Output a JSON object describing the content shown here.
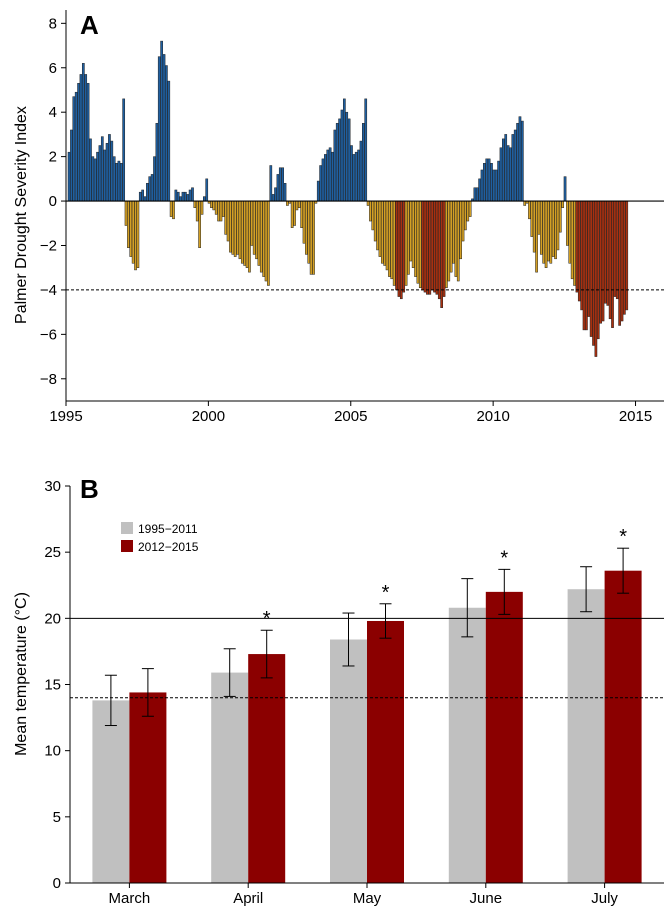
{
  "chart_data": [
    {
      "panel_label": "A",
      "type": "bar",
      "ylabel": "Palmer Drought Severity Index",
      "xlabel": "",
      "ylim": [
        -9,
        8.6
      ],
      "xlim": [
        1995,
        2016
      ],
      "yticks": [
        -8,
        -6,
        -4,
        -2,
        0,
        2,
        4,
        6,
        8
      ],
      "ytick_labels": [
        "−8",
        "−6",
        "−4",
        "−2",
        "0",
        "2",
        "4",
        "6",
        "8"
      ],
      "xticks": [
        1995,
        2000,
        2005,
        2010,
        2015
      ],
      "xtick_labels": [
        "1995",
        "2000",
        "2005",
        "2010",
        "2015"
      ],
      "reference_line": -4,
      "grid": false,
      "colors": {
        "positive": "#1f5fa0",
        "negative_mild": "#d4a024",
        "negative_severe": "#a83010",
        "edge": "#222222"
      },
      "x_start_year": 1995,
      "interval": "monthly",
      "values": [
        2.2,
        3.2,
        4.7,
        4.9,
        5.3,
        5.7,
        6.2,
        5.7,
        5.3,
        2.8,
        2.0,
        1.9,
        2.2,
        2.5,
        2.9,
        2.3,
        2.6,
        3.0,
        2.7,
        2.0,
        1.7,
        1.8,
        1.7,
        4.6,
        -1.1,
        -2.1,
        -2.5,
        -2.8,
        -3.1,
        -3.0,
        0.4,
        0.5,
        0.2,
        0.8,
        1.1,
        1.2,
        2.0,
        3.5,
        6.5,
        7.2,
        6.6,
        6.1,
        5.4,
        -0.7,
        -0.8,
        0.5,
        0.4,
        0.2,
        0.4,
        0.4,
        0.3,
        0.5,
        0.6,
        -0.3,
        -0.9,
        -2.1,
        -0.6,
        0.2,
        1.0,
        -0.1,
        -0.3,
        -0.4,
        -0.6,
        -0.9,
        -0.9,
        -0.7,
        -1.5,
        -1.8,
        -2.3,
        -2.4,
        -2.5,
        -2.4,
        -2.6,
        -2.8,
        -2.9,
        -3.0,
        -3.2,
        -2.0,
        -2.4,
        -2.6,
        -2.9,
        -3.2,
        -3.4,
        -3.6,
        -3.8,
        1.6,
        0.3,
        0.6,
        1.2,
        1.5,
        1.5,
        0.8,
        -0.2,
        -0.1,
        -1.2,
        -1.1,
        -0.4,
        -0.3,
        -1.2,
        -1.9,
        -2.4,
        -2.8,
        -3.3,
        -3.3,
        -0.1,
        0.9,
        1.6,
        1.9,
        2.1,
        2.3,
        2.4,
        2.2,
        3.2,
        3.5,
        3.7,
        4.1,
        4.6,
        4.0,
        3.7,
        2.5,
        2.1,
        2.2,
        2.3,
        2.7,
        3.5,
        4.6,
        -0.2,
        -0.9,
        -1.3,
        -1.8,
        -2.2,
        -2.5,
        -2.8,
        -2.9,
        -3.1,
        -3.4,
        -3.5,
        -3.8,
        -4.0,
        -4.3,
        -4.4,
        -4.1,
        -3.8,
        -3.3,
        -2.7,
        -3.0,
        -3.4,
        -3.7,
        -3.9,
        -4.0,
        -4.1,
        -4.2,
        -4.2,
        -4.0,
        -4.1,
        -4.2,
        -4.4,
        -4.8,
        -4.3,
        -3.9,
        -3.6,
        -3.2,
        -2.8,
        -3.4,
        -3.6,
        -2.6,
        -1.8,
        -1.3,
        -0.9,
        -0.7,
        0.1,
        0.6,
        0.6,
        1.0,
        1.4,
        1.7,
        1.9,
        1.9,
        1.7,
        1.4,
        1.4,
        1.8,
        2.4,
        2.8,
        3.0,
        2.5,
        2.4,
        3.0,
        3.2,
        3.5,
        3.8,
        3.6,
        -0.2,
        -0.1,
        -0.8,
        -1.6,
        -2.3,
        -3.2,
        -1.5,
        -2.4,
        -2.8,
        -3.0,
        -2.7,
        -2.8,
        -2.5,
        -2.6,
        -2.2,
        -1.4,
        -0.3,
        1.1,
        -2.0,
        -2.8,
        -3.5,
        -3.8,
        -4.1,
        -4.5,
        -4.9,
        -5.8,
        -5.8,
        -5.2,
        -6.1,
        -6.5,
        -7.0,
        -6.2,
        -5.5,
        -5.4,
        -4.6,
        -4.7,
        -5.3,
        -5.7,
        -4.3,
        -4.4,
        -5.6,
        -5.4,
        -5.1,
        -4.9
      ]
    },
    {
      "panel_label": "B",
      "type": "bar",
      "ylabel": "Mean temperature (°C)",
      "xlabel": "",
      "ylim": [
        0,
        30
      ],
      "yticks": [
        0,
        5,
        10,
        15,
        20,
        25,
        30
      ],
      "ytick_labels": [
        "0",
        "5",
        "10",
        "15",
        "20",
        "25",
        "30"
      ],
      "categories": [
        "March",
        "April",
        "May",
        "June",
        "July"
      ],
      "series": [
        {
          "name": "1995−2011",
          "color": "#c0c0c0",
          "values": [
            13.8,
            15.9,
            18.4,
            20.8,
            22.2
          ],
          "errors": [
            1.9,
            1.8,
            2.0,
            2.2,
            1.7
          ]
        },
        {
          "name": "2012−2015",
          "color": "#8b0000",
          "values": [
            14.4,
            17.3,
            19.8,
            22.0,
            23.6
          ],
          "errors": [
            1.8,
            1.8,
            1.3,
            1.7,
            1.7
          ]
        }
      ],
      "significance": [
        "",
        "*",
        "*",
        "*",
        "*"
      ],
      "reference_lines": [
        {
          "value": 20,
          "style": "solid"
        },
        {
          "value": 14,
          "style": "dashed"
        }
      ],
      "legend_position": "top-left",
      "grid": false
    }
  ]
}
